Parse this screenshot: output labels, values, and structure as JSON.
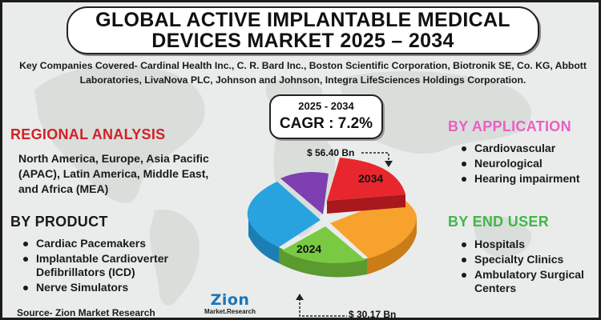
{
  "title": "GLOBAL ACTIVE IMPLANTABLE MEDICAL DEVICES MARKET 2025 – 2034",
  "companies": "Key Companies Covered- Cardinal Health Inc., C. R. Bard Inc., Boston Scientific Corporation, Biotronik SE, Co. KG, Abbott Laboratories, LivaNova PLC, Johnson and Johnson, Integra LifeSciences Holdings Corporation.",
  "cagr": {
    "years": "2025 - 2034",
    "value": "CAGR : 7.2%"
  },
  "regional": {
    "title": "REGIONAL ANALYSIS",
    "text": "North America, Europe, Asia Pacific (APAC), Latin America, Middle East, and Africa (MEA)"
  },
  "product": {
    "title": "BY PRODUCT",
    "items": [
      "Cardiac Pacemakers",
      "Implantable Cardioverter Defibrillators (ICD)",
      "Nerve Simulators"
    ]
  },
  "application": {
    "title": "BY APPLICATION",
    "items": [
      "Cardiovascular",
      "Neurological",
      "Hearing impairment"
    ]
  },
  "end_user": {
    "title": "BY END USER",
    "items": [
      "Hospitals",
      "Specialty Clinics",
      "Ambulatory Surgical Centers"
    ]
  },
  "pie": {
    "label_2034": "2034",
    "label_2024": "2024",
    "value_2034": "$ 56.40 Bn",
    "value_2024": "$ 30.17 Bn"
  },
  "source": "Source- Zion Market Research",
  "logo": {
    "main": "Zion",
    "sub": "Market.Research"
  },
  "colors": {
    "red": "#e8262d",
    "orange": "#f7a22c",
    "green": "#7ac943",
    "blue": "#29a3e0",
    "purple": "#7e3fb0",
    "regional": "#d42027",
    "application": "#ea5fc4",
    "end_user": "#43b649"
  }
}
